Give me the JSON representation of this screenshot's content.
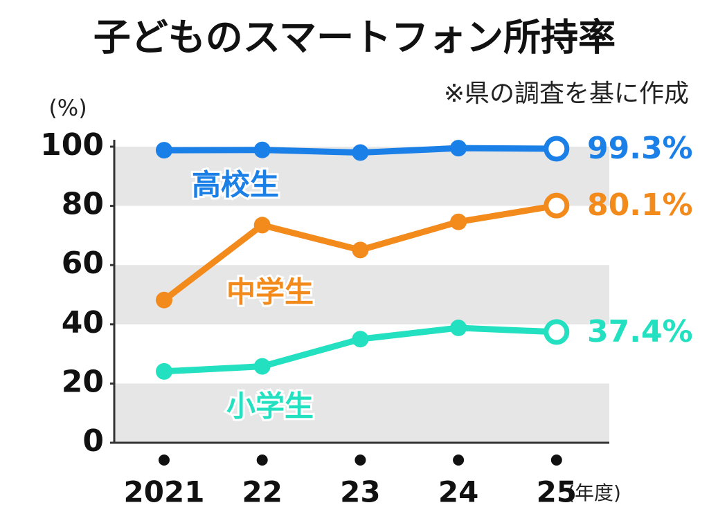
{
  "chart_data": {
    "type": "line",
    "title": "子どものスマートフォン所持率",
    "subtitle": "※県の調査を基に作成",
    "y_label": "(%)",
    "x_label": "(年度)",
    "categories": [
      "2021",
      "22",
      "23",
      "24",
      "25"
    ],
    "series": [
      {
        "name": "高校生",
        "color": "#1a7fe6",
        "values": [
          98.8,
          98.9,
          98.0,
          99.5,
          99.3
        ],
        "value_labels": [
          null,
          null,
          null,
          null,
          "99.3%"
        ]
      },
      {
        "name": "中学生",
        "color": "#f28a1c",
        "values": [
          48.2,
          73.5,
          65.1,
          74.6,
          80.1
        ],
        "value_labels": [
          null,
          null,
          null,
          null,
          "80.1%"
        ]
      },
      {
        "name": "小学生",
        "color": "#22e0c0",
        "values": [
          24.1,
          25.8,
          35.0,
          38.8,
          37.4
        ],
        "value_labels": [
          null,
          null,
          null,
          null,
          "37.4%"
        ]
      }
    ],
    "ylim": [
      0,
      100
    ],
    "yticks": [
      0,
      20,
      40,
      60,
      80,
      100
    ],
    "grid": "bands"
  }
}
